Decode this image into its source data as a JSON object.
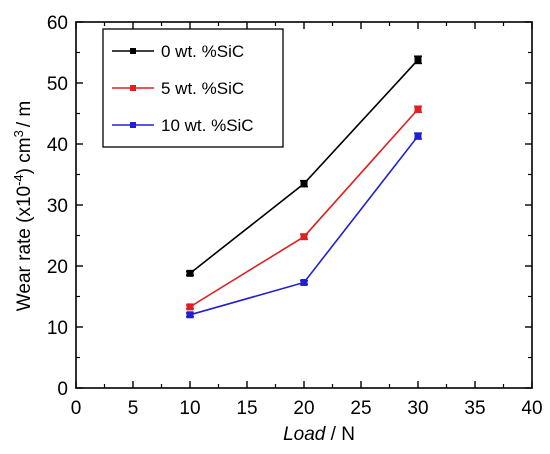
{
  "chart_data": {
    "type": "line",
    "title": "",
    "xlabel_italic": "Load",
    "xlabel_unit": " / N",
    "ylabel_prefix": "Wear rate (x10",
    "ylabel_exp": "-4",
    "ylabel_mid": ") cm",
    "ylabel_exp2": "3",
    "ylabel_suffix": "/ m",
    "xlim": [
      0,
      40
    ],
    "ylim": [
      0,
      60
    ],
    "xticks": [
      0,
      5,
      10,
      15,
      20,
      25,
      30,
      35,
      40
    ],
    "yticks": [
      0,
      10,
      20,
      30,
      40,
      50,
      60
    ],
    "x": [
      10,
      20,
      30
    ],
    "grid": false,
    "legend_position": "top-left",
    "series": [
      {
        "name": "0 wt. %SiC",
        "color": "#000000",
        "values": [
          18.8,
          33.5,
          53.8
        ],
        "errors": [
          0.3,
          0.5,
          0.6
        ]
      },
      {
        "name": "5 wt. %SiC",
        "color": "#e02020",
        "values": [
          13.3,
          24.8,
          45.7
        ],
        "errors": [
          0.3,
          0.4,
          0.5
        ]
      },
      {
        "name": "10 wt. %SiC",
        "color": "#2020d0",
        "values": [
          12.0,
          17.3,
          41.3
        ],
        "errors": [
          0.3,
          0.3,
          0.5
        ]
      }
    ]
  }
}
